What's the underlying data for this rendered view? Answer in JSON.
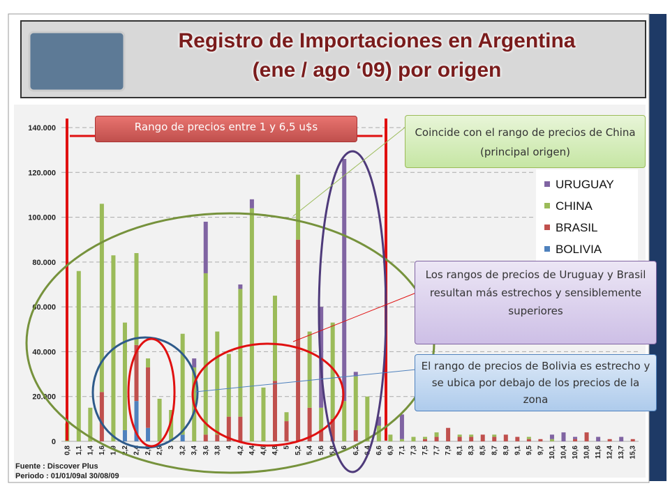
{
  "title_lines": [
    "Registro de Importaciones en Argentina",
    "(ene / ago ‘09) por origen"
  ],
  "chart_data": {
    "type": "stacked-bar",
    "categories": [
      "0,8",
      "1,1",
      "1,4",
      "1,6",
      "1,9",
      "2,2",
      "2,4",
      "2,6",
      "2,9",
      "3",
      "3,2",
      "3,4",
      "3,6",
      "3,8",
      "4",
      "4,2",
      "4,4",
      "4,6",
      "4,8",
      "5",
      "5,2",
      "5,4",
      "5,6",
      "5,8",
      "6",
      "6,2",
      "6,4",
      "6,6",
      "6,9",
      "7,1",
      "7,3",
      "7,5",
      "7,7",
      "7,9",
      "8,1",
      "8,3",
      "8,5",
      "8,7",
      "8,9",
      "9,1",
      "9,5",
      "9,7",
      "10,1",
      "10,4",
      "10,6",
      "10,8",
      "11,6",
      "12,4",
      "13,7",
      "15,3"
    ],
    "series": [
      {
        "name": "URUGUAY",
        "color": "#8064a2",
        "values": [
          0,
          0,
          0,
          0,
          0,
          0,
          0,
          0,
          0,
          0,
          0,
          4000,
          23000,
          0,
          0,
          2000,
          4000,
          0,
          0,
          0,
          0,
          0,
          45000,
          0,
          108000,
          2000,
          0,
          4000,
          0,
          11000,
          0,
          0,
          0,
          0,
          0,
          0,
          0,
          0,
          0,
          0,
          0,
          0,
          2000,
          4000,
          1000,
          0,
          2000,
          0,
          2000,
          0
        ]
      },
      {
        "name": "CHINA",
        "color": "#9bbb59",
        "values": [
          8000,
          76000,
          15000,
          84000,
          83000,
          48000,
          41000,
          4000,
          19000,
          14000,
          45000,
          33000,
          72000,
          46000,
          28000,
          57000,
          104000,
          24000,
          38000,
          4000,
          29000,
          34000,
          10000,
          43000,
          18000,
          24000,
          20000,
          7000,
          3000,
          1000,
          2000,
          1000,
          2000,
          0,
          1000,
          1000,
          0,
          1000,
          0,
          0,
          1000,
          0,
          1000,
          0,
          0,
          0,
          0,
          0,
          0,
          0
        ]
      },
      {
        "name": "BRASIL",
        "color": "#c0504d",
        "values": [
          0,
          0,
          0,
          22000,
          0,
          0,
          25000,
          27000,
          0,
          0,
          0,
          0,
          3000,
          3000,
          11000,
          11000,
          0,
          0,
          27000,
          9000,
          90000,
          15000,
          5000,
          10000,
          0,
          5000,
          0,
          0,
          0,
          0,
          0,
          1000,
          2000,
          6000,
          2000,
          2000,
          3000,
          2000,
          3000,
          2000,
          1000,
          1000,
          0,
          0,
          1000,
          4000,
          0,
          1000,
          0,
          1000
        ]
      },
      {
        "name": "BOLIVIA",
        "color": "#4f81bd",
        "values": [
          0,
          0,
          0,
          0,
          0,
          5000,
          18000,
          6000,
          0,
          0,
          3000,
          0,
          0,
          0,
          0,
          0,
          0,
          0,
          0,
          0,
          0,
          0,
          0,
          0,
          0,
          0,
          0,
          0,
          0,
          0,
          0,
          0,
          0,
          0,
          0,
          0,
          0,
          0,
          0,
          0,
          0,
          0,
          0,
          0,
          0,
          0,
          0,
          0,
          0,
          0
        ]
      }
    ],
    "ylim": [
      0,
      140000
    ],
    "yticks": [
      0,
      {
        "value": 20000,
        "label": "20.000"
      },
      {
        "value": 40000,
        "label": "40.000"
      },
      {
        "value": 60000,
        "label": "60.000"
      },
      {
        "value": 80000,
        "label": "80.000"
      },
      {
        "value": 100000,
        "label": "100.000"
      },
      {
        "value": 120000,
        "label": "120.000"
      },
      {
        "value": 140000,
        "label": "140.000"
      }
    ],
    "grid": true
  },
  "range_label": "Rango de precios entre 1 y 6,5 u$s",
  "callouts": [
    "Coincide con el rango de precios de China (principal origen)",
    "Los rangos de precios de Uruguay y Brasil resultan más estrechos y  sensiblemente superiores",
    "El rango de precios de Bolivia es estrecho y se ubica por debajo de los precios de la zona"
  ],
  "source_lines": [
    "Fuente : Discover Plus",
    "Periodo : 01/01/09al 30/08/09"
  ]
}
